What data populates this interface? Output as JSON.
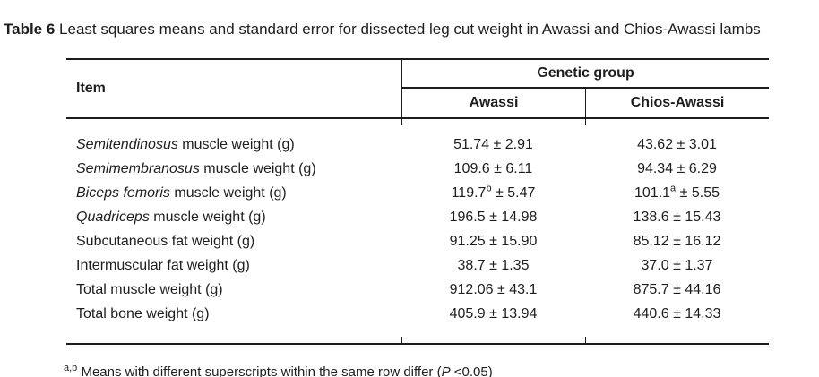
{
  "title": {
    "label": "Table 6",
    "rest": " Least squares means and standard error for dissected leg cut weight in Awassi and Chios-Awassi lambs"
  },
  "table": {
    "item_header": "Item",
    "group_header": "Genetic group",
    "columns": [
      "Awassi",
      "Chios-Awassi"
    ],
    "rows": [
      {
        "item": {
          "italic": "Semitendinosus",
          "rest": " muscle weight (g)"
        },
        "awassi": {
          "pre": "51.74",
          "sup": "",
          "post": " ± 2.91"
        },
        "chios": {
          "pre": "43.62",
          "sup": "",
          "post": " ± 3.01"
        }
      },
      {
        "item": {
          "italic": "Semimembranosus",
          "rest": " muscle weight (g)"
        },
        "awassi": {
          "pre": "109.6",
          "sup": "",
          "post": " ± 6.11"
        },
        "chios": {
          "pre": "94.34",
          "sup": "",
          "post": " ± 6.29"
        }
      },
      {
        "item": {
          "italic": "Biceps femoris",
          "rest": " muscle weight (g)"
        },
        "awassi": {
          "pre": "119.7",
          "sup": "b",
          "post": " ± 5.47"
        },
        "chios": {
          "pre": "101.1",
          "sup": "a",
          "post": " ± 5.55"
        }
      },
      {
        "item": {
          "italic": "Quadriceps",
          "rest": " muscle weight (g)"
        },
        "awassi": {
          "pre": "196.5",
          "sup": "",
          "post": " ± 14.98"
        },
        "chios": {
          "pre": "138.6",
          "sup": "",
          "post": " ± 15.43"
        }
      },
      {
        "item": {
          "italic": "",
          "rest": "Subcutaneous fat weight (g)"
        },
        "awassi": {
          "pre": "91.25",
          "sup": "",
          "post": " ± 15.90"
        },
        "chios": {
          "pre": "85.12",
          "sup": "",
          "post": " ± 16.12"
        }
      },
      {
        "item": {
          "italic": "",
          "rest": "Intermuscular fat weight (g)"
        },
        "awassi": {
          "pre": "38.7",
          "sup": "",
          "post": " ± 1.35"
        },
        "chios": {
          "pre": "37.0",
          "sup": "",
          "post": " ± 1.37"
        }
      },
      {
        "item": {
          "italic": "",
          "rest": "Total muscle weight (g)"
        },
        "awassi": {
          "pre": "912.06",
          "sup": "",
          "post": " ± 43.1"
        },
        "chios": {
          "pre": "875.7",
          "sup": "",
          "post": " ± 44.16"
        }
      },
      {
        "item": {
          "italic": "",
          "rest": "Total bone weight (g)"
        },
        "awassi": {
          "pre": "405.9",
          "sup": "",
          "post": " ± 13.94"
        },
        "chios": {
          "pre": "440.6",
          "sup": "",
          "post": " ± 14.33"
        }
      }
    ]
  },
  "footnote": {
    "sup": "a,b",
    "text": " Means with different superscripts within the same row differ (",
    "italic_p": "P",
    "tail": " <0.05)"
  }
}
